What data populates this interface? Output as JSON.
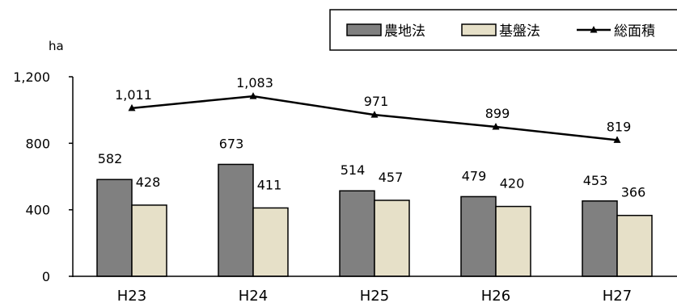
{
  "chart_data": {
    "type": "bar",
    "categories": [
      "H23",
      "H24",
      "H25",
      "H26",
      "H27"
    ],
    "series": [
      {
        "name": "農地法",
        "type": "bar",
        "color": "#808080",
        "values": [
          582,
          673,
          514,
          479,
          453
        ]
      },
      {
        "name": "基盤法",
        "type": "bar",
        "color": "#e6e0c8",
        "values": [
          428,
          411,
          457,
          420,
          366
        ]
      },
      {
        "name": "総面積",
        "type": "line",
        "color": "#000000",
        "marker": "triangle",
        "values": [
          1011,
          1083,
          971,
          899,
          819
        ]
      }
    ],
    "data_labels": {
      "農地法": [
        "582",
        "673",
        "514",
        "479",
        "453"
      ],
      "基盤法": [
        "428",
        "411",
        "457",
        "420",
        "366"
      ],
      "総面積": [
        "1,011",
        "1,083",
        "971",
        "899",
        "819"
      ]
    },
    "ylabel": "ha",
    "ylim": [
      0,
      1200
    ],
    "yticks": [
      "0",
      "400",
      "800",
      "1,200"
    ],
    "ytick_values": [
      0,
      400,
      800,
      1200
    ],
    "grid": false,
    "legend_position": "top-right"
  }
}
